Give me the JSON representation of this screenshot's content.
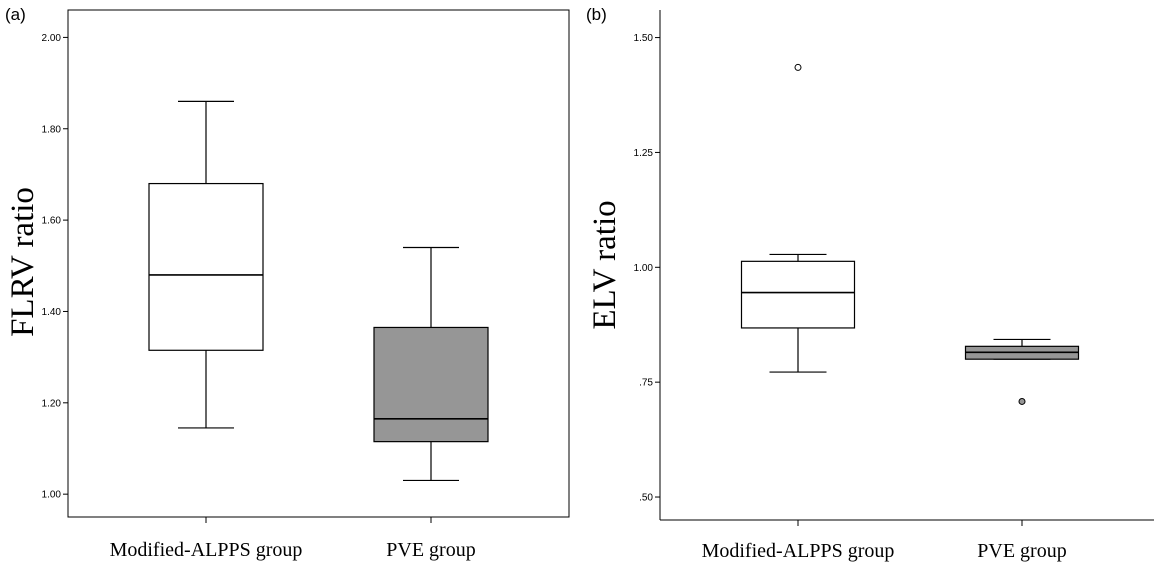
{
  "chart_data": [
    {
      "type": "box",
      "panel_label": "(a)",
      "ylabel": "FLRV ratio",
      "xlabel": "",
      "ylim": [
        0.95,
        2.06
      ],
      "y_ticks": [
        1.0,
        1.2,
        1.4,
        1.6,
        1.8,
        2.0
      ],
      "y_tick_labels": [
        "1.00",
        "1.20",
        "1.40",
        "1.60",
        "1.80",
        "2.00"
      ],
      "categories": [
        "Modified-ALPPS group",
        "PVE group"
      ],
      "boxes": [
        {
          "category": "Modified-ALPPS group",
          "min": 1.145,
          "q1": 1.315,
          "median": 1.48,
          "q3": 1.68,
          "max": 1.86,
          "fill": "#ffffff",
          "outliers": []
        },
        {
          "category": "PVE group",
          "min": 1.03,
          "q1": 1.115,
          "median": 1.165,
          "q3": 1.365,
          "max": 1.54,
          "fill": "#969696",
          "outliers": []
        }
      ]
    },
    {
      "type": "box",
      "panel_label": "(b)",
      "ylabel": "ELV ratio",
      "xlabel": "",
      "ylim": [
        0.45,
        1.56
      ],
      "y_ticks": [
        0.5,
        0.75,
        1.0,
        1.25,
        1.5
      ],
      "y_tick_labels": [
        ".50",
        ".75",
        "1.00",
        "1.25",
        "1.50"
      ],
      "categories": [
        "Modified-ALPPS group",
        "PVE group"
      ],
      "boxes": [
        {
          "category": "Modified-ALPPS group",
          "min": 0.772,
          "q1": 0.868,
          "median": 0.945,
          "q3": 1.013,
          "max": 1.028,
          "fill": "#ffffff",
          "outliers": [
            1.435
          ]
        },
        {
          "category": "PVE group",
          "min": 0.8,
          "q1": 0.8,
          "median": 0.815,
          "q3": 0.828,
          "max": 0.843,
          "fill": "#969696",
          "outliers": [
            0.708
          ]
        }
      ]
    }
  ]
}
